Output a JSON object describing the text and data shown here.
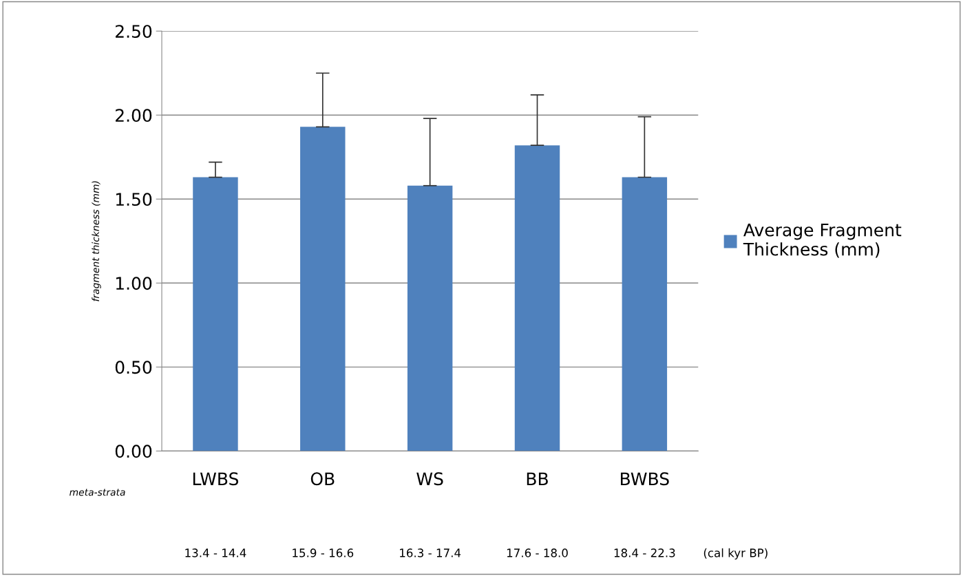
{
  "chart_data": {
    "type": "bar",
    "ylabel": "fragment thickness (mm)",
    "categories": [
      "LWBS",
      "OB",
      "WS",
      "BB",
      "BWBS"
    ],
    "series": [
      {
        "name": "Average Fragment Thickness (mm)",
        "color": "#4f81bd",
        "values": [
          1.63,
          1.93,
          1.58,
          1.82,
          1.63
        ],
        "errors": [
          [
            1.63,
            1.72
          ],
          [
            1.93,
            2.25
          ],
          [
            1.58,
            1.98
          ],
          [
            1.82,
            2.12
          ],
          [
            1.63,
            1.99
          ]
        ]
      }
    ],
    "ylim": [
      0,
      2.5
    ],
    "yticks": [
      {
        "value": 0,
        "label": "0.00"
      },
      {
        "value": 0.5,
        "label": "0.50"
      },
      {
        "value": 1,
        "label": "1.00"
      },
      {
        "value": 1.5,
        "label": "1.50"
      },
      {
        "value": 2,
        "label": "2.00"
      },
      {
        "value": 2.5,
        "label": "2.50"
      }
    ],
    "grid": "y",
    "legend": "right",
    "annotations": [
      "meta-strata",
      "13.4 - 14.4",
      "15.9 - 16.6",
      "16.3 - 17.4",
      "17.6 - 18.0",
      "18.4 - 22.3",
      "(cal kyr BP)"
    ]
  }
}
